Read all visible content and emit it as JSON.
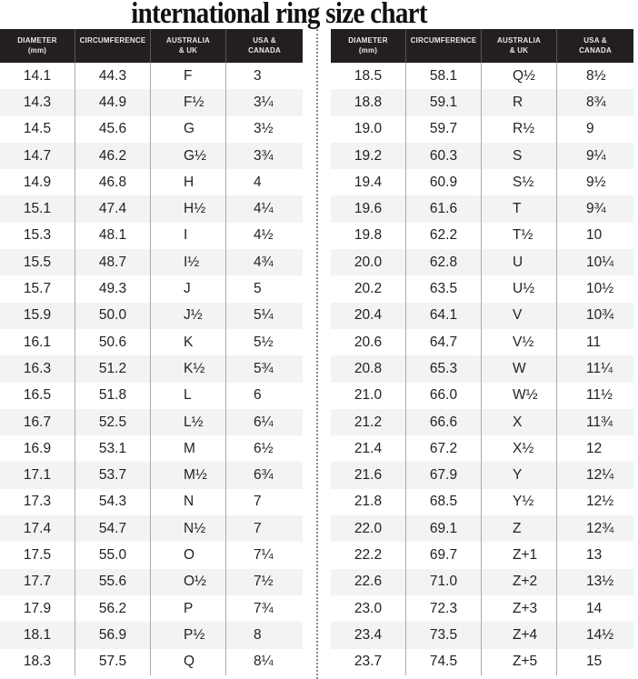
{
  "title": "international ring size chart",
  "headers": [
    "DIAMETER\n(mm)",
    "CIRCUMFERENCE",
    "AUSTRALIA\n& UK",
    "USA &\nCANADA"
  ],
  "left_rows": [
    [
      "14.1",
      "44.3",
      "F",
      "3"
    ],
    [
      "14.3",
      "44.9",
      "F½",
      "3¼"
    ],
    [
      "14.5",
      "45.6",
      "G",
      "3½"
    ],
    [
      "14.7",
      "46.2",
      "G½",
      "3¾"
    ],
    [
      "14.9",
      "46.8",
      "H",
      "4"
    ],
    [
      "15.1",
      "47.4",
      "H½",
      "4¼"
    ],
    [
      "15.3",
      "48.1",
      "I",
      "4½"
    ],
    [
      "15.5",
      "48.7",
      "I½",
      "4¾"
    ],
    [
      "15.7",
      "49.3",
      "J",
      "5"
    ],
    [
      "15.9",
      "50.0",
      "J½",
      "5¼"
    ],
    [
      "16.1",
      "50.6",
      "K",
      "5½"
    ],
    [
      "16.3",
      "51.2",
      "K½",
      "5¾"
    ],
    [
      "16.5",
      "51.8",
      "L",
      "6"
    ],
    [
      "16.7",
      "52.5",
      "L½",
      "6¼"
    ],
    [
      "16.9",
      "53.1",
      "M",
      "6½"
    ],
    [
      "17.1",
      "53.7",
      "M½",
      "6¾"
    ],
    [
      "17.3",
      "54.3",
      "N",
      "7"
    ],
    [
      "17.4",
      "54.7",
      "N½",
      "7"
    ],
    [
      "17.5",
      "55.0",
      "O",
      "7¼"
    ],
    [
      "17.7",
      "55.6",
      "O½",
      "7½"
    ],
    [
      "17.9",
      "56.2",
      "P",
      "7¾"
    ],
    [
      "18.1",
      "56.9",
      "P½",
      "8"
    ],
    [
      "18.3",
      "57.5",
      "Q",
      "8¼"
    ]
  ],
  "right_rows": [
    [
      "18.5",
      "58.1",
      "Q½",
      "8½"
    ],
    [
      "18.8",
      "59.1",
      "R",
      "8¾"
    ],
    [
      "19.0",
      "59.7",
      "R½",
      "9"
    ],
    [
      "19.2",
      "60.3",
      "S",
      "9¼"
    ],
    [
      "19.4",
      "60.9",
      "S½",
      "9½"
    ],
    [
      "19.6",
      "61.6",
      "T",
      "9¾"
    ],
    [
      "19.8",
      "62.2",
      "T½",
      "10"
    ],
    [
      "20.0",
      "62.8",
      "U",
      "10¼"
    ],
    [
      "20.2",
      "63.5",
      "U½",
      "10½"
    ],
    [
      "20.4",
      "64.1",
      "V",
      "10¾"
    ],
    [
      "20.6",
      "64.7",
      "V½",
      "11"
    ],
    [
      "20.8",
      "65.3",
      "W",
      "11¼"
    ],
    [
      "21.0",
      "66.0",
      "W½",
      "11½"
    ],
    [
      "21.2",
      "66.6",
      "X",
      "11¾"
    ],
    [
      "21.4",
      "67.2",
      "X½",
      "12"
    ],
    [
      "21.6",
      "67.9",
      "Y",
      "12¼"
    ],
    [
      "21.8",
      "68.5",
      "Y½",
      "12½"
    ],
    [
      "22.0",
      "69.1",
      "Z",
      "12¾"
    ],
    [
      "22.2",
      "69.7",
      "Z+1",
      "13"
    ],
    [
      "22.6",
      "71.0",
      "Z+2",
      "13½"
    ],
    [
      "23.0",
      "72.3",
      "Z+3",
      "14"
    ],
    [
      "23.4",
      "73.5",
      "Z+4",
      "14½"
    ],
    [
      "23.7",
      "74.5",
      "Z+5",
      "15"
    ]
  ],
  "colors": {
    "header_bg": "#231f20",
    "stripe": "#f2f3f3"
  }
}
